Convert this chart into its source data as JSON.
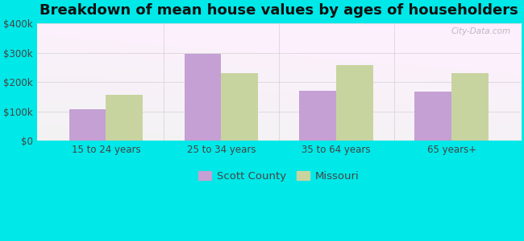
{
  "title": "Breakdown of mean house values by ages of householders",
  "categories": [
    "15 to 24 years",
    "25 to 34 years",
    "35 to 64 years",
    "65 years+"
  ],
  "scott_county": [
    108000,
    298000,
    172000,
    168000
  ],
  "missouri": [
    158000,
    230000,
    258000,
    230000
  ],
  "scott_county_color": "#c4a0d4",
  "missouri_color": "#c8d4a0",
  "background_color": "#00e8e8",
  "ylim": [
    0,
    400000
  ],
  "yticks": [
    0,
    100000,
    200000,
    300000,
    400000
  ],
  "ytick_labels": [
    "$0",
    "$100k",
    "$200k",
    "$300k",
    "$400k"
  ],
  "legend_labels": [
    "Scott County",
    "Missouri"
  ],
  "watermark": "City-Data.com",
  "bar_width": 0.32,
  "title_fontsize": 13,
  "tick_fontsize": 8.5,
  "legend_fontsize": 9.5
}
